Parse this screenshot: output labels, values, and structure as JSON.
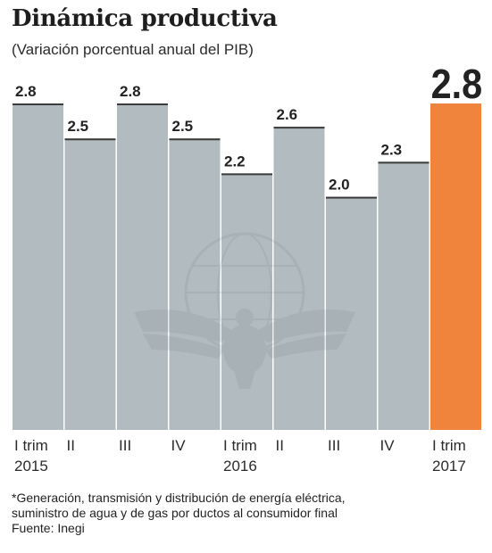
{
  "title": "Dinámica productiva",
  "subtitle": "(Variación porcentual anual del PIB)",
  "chart_data": {
    "type": "bar",
    "categories": [
      "I trim 2015",
      "II",
      "III",
      "IV",
      "I trim 2016",
      "II",
      "III",
      "IV",
      "I trim 2017"
    ],
    "category_lines": [
      [
        "I trim",
        "2015"
      ],
      [
        "II"
      ],
      [
        "III"
      ],
      [
        "IV"
      ],
      [
        "I trim",
        "2016"
      ],
      [
        "II"
      ],
      [
        "III"
      ],
      [
        "IV"
      ],
      [
        "I trim",
        "2017"
      ]
    ],
    "values": [
      2.8,
      2.5,
      2.8,
      2.5,
      2.2,
      2.6,
      2.0,
      2.3,
      2.8
    ],
    "value_labels": [
      "2.8",
      "2.5",
      "2.8",
      "2.5",
      "2.2",
      "2.6",
      "2.0",
      "2.3",
      "2.8"
    ],
    "highlight_index": 8,
    "ylim": [
      0,
      2.8
    ],
    "grid": false,
    "xlabel": "",
    "ylabel": "",
    "colors": {
      "bar": "#b2bcc0",
      "highlight": "#f0843c",
      "bar_top_line": "#3b3b3b",
      "text": "#222222"
    }
  },
  "footnote": "*Generación, transmisión y distribución de energía eléctrica,",
  "footnote_cont": "suministro de agua y de gas por ductos al consumidor final",
  "source": "Fuente: Inegi",
  "watermark_icon": "eagle-over-globe-emblem"
}
